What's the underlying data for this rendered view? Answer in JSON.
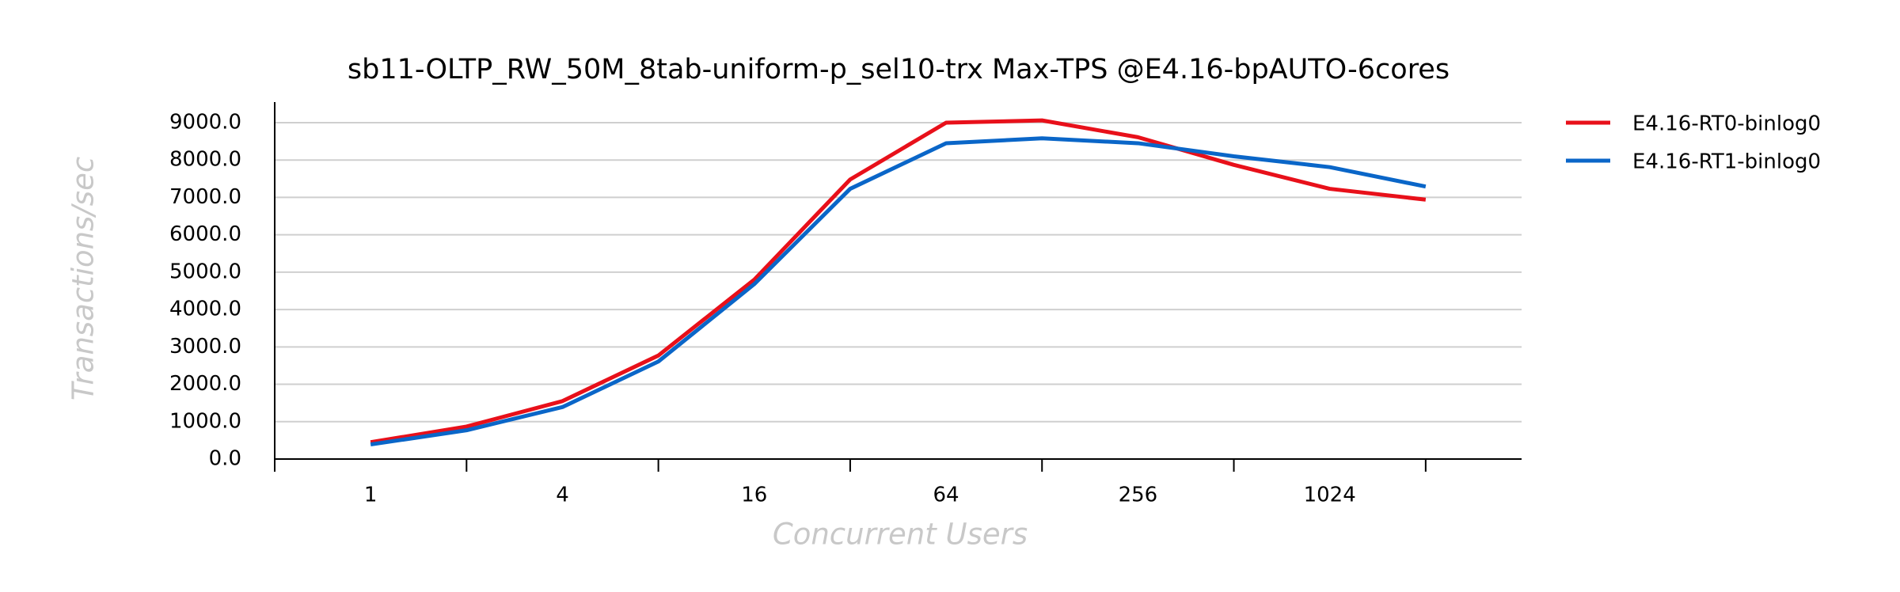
{
  "chart_data": {
    "type": "line",
    "title": "sb11-OLTP_RW_50M_8tab-uniform-p_sel10-trx Max-TPS @E4.16-bpAUTO-6cores",
    "x_label": "Concurrent Users",
    "y_label": "Transactions/sec",
    "categories": [
      "1",
      null,
      "4",
      null,
      "16",
      null,
      "64",
      null,
      "256",
      null,
      "1024",
      null
    ],
    "series": [
      {
        "name": "E4.16-RT0-binlog0",
        "color": "#e8101a",
        "values": [
          450,
          870,
          1550,
          2770,
          4800,
          7480,
          9000,
          9060,
          8610,
          7870,
          7230,
          6940
        ]
      },
      {
        "name": "E4.16-RT1-binlog0",
        "color": "#0a66c8",
        "values": [
          390,
          770,
          1390,
          2610,
          4680,
          7230,
          8450,
          8580,
          8450,
          8100,
          7810,
          7290
        ]
      }
    ],
    "ylim": [
      0,
      9550
    ],
    "yticks": [
      {
        "value": 0,
        "label": "0.0"
      },
      {
        "value": 1000,
        "label": "1000.0"
      },
      {
        "value": 2000,
        "label": "2000.0"
      },
      {
        "value": 3000,
        "label": "3000.0"
      },
      {
        "value": 4000,
        "label": "4000.0"
      },
      {
        "value": 5000,
        "label": "5000.0"
      },
      {
        "value": 6000,
        "label": "6000.0"
      },
      {
        "value": 7000,
        "label": "7000.0"
      },
      {
        "value": 8000,
        "label": "8000.0"
      },
      {
        "value": 9000,
        "label": "9000.0"
      }
    ],
    "grid": true,
    "legend": "right"
  }
}
